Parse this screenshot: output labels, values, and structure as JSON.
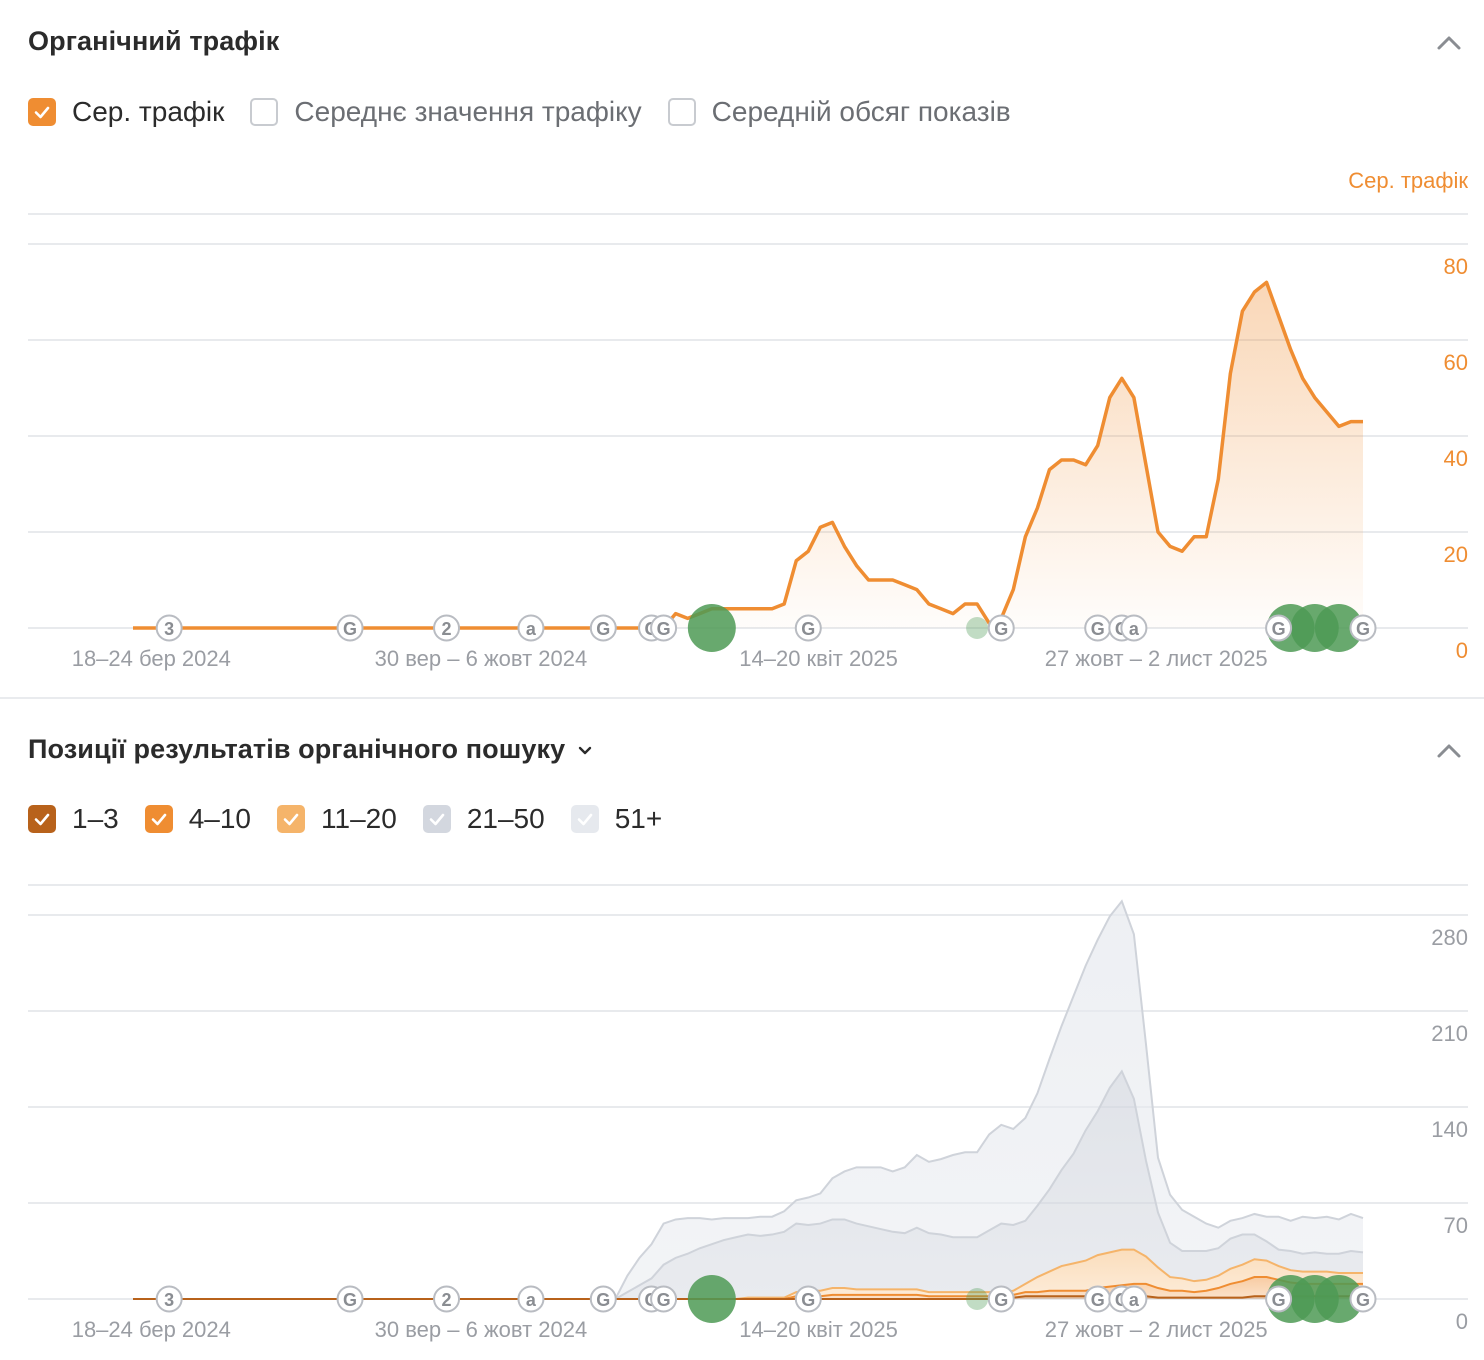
{
  "traffic": {
    "title": "Органічний трафік",
    "legend": [
      {
        "label": "Сер. трафік",
        "checked": true,
        "color": "#ef8d32"
      },
      {
        "label": "Середнє значення трафіку",
        "checked": false,
        "color": "#c8cbd0"
      },
      {
        "label": "Середній обсяг показів",
        "checked": false,
        "color": "#c8cbd0"
      }
    ],
    "chart_data": {
      "type": "area",
      "axis_title": "Сер. трафік",
      "y_ticks": [
        "0",
        "20",
        "40",
        "60",
        "80"
      ],
      "ylim": [
        0,
        80
      ],
      "x_tick_labels": [
        "18–24 бер 2024",
        "30 вер – 6 жовт 2024",
        "14–20 квіт 2025",
        "27 жовт – 2 лист 2025"
      ],
      "x_tick_index": [
        5,
        33,
        61,
        89
      ],
      "series": [
        {
          "color": "#ef8d32",
          "values": [
            0,
            0,
            0,
            0,
            0,
            0,
            0,
            0,
            0,
            0,
            0,
            0,
            0,
            0,
            0,
            0,
            0,
            0,
            0,
            0,
            0,
            0,
            0,
            0,
            0,
            0,
            0,
            0,
            0,
            0,
            0,
            0,
            0,
            0,
            0,
            0,
            0,
            0,
            0,
            0,
            0,
            0,
            0,
            0,
            0,
            3,
            2,
            3,
            4,
            4,
            4,
            4,
            4,
            4,
            5,
            14,
            16,
            21,
            22,
            17,
            13,
            10,
            10,
            10,
            9,
            8,
            5,
            4,
            3,
            5,
            5,
            1,
            2,
            8,
            19,
            25,
            33,
            35,
            35,
            34,
            38,
            48,
            52,
            48,
            34,
            20,
            17,
            16,
            19,
            19,
            31,
            53,
            66,
            70,
            72,
            65,
            58,
            52,
            48,
            45,
            42,
            43,
            43
          ]
        }
      ],
      "events": [
        {
          "i": 3,
          "label": "3"
        },
        {
          "i": 18,
          "label": "G"
        },
        {
          "i": 26,
          "label": "2"
        },
        {
          "i": 33,
          "label": "a"
        },
        {
          "i": 39,
          "label": "G"
        },
        {
          "i": 43,
          "label": "G"
        },
        {
          "i": 44,
          "label": "G"
        },
        {
          "i": 56,
          "label": "G"
        },
        {
          "i": 72,
          "label": "G"
        },
        {
          "i": 80,
          "label": "G"
        },
        {
          "i": 82,
          "label": "G"
        },
        {
          "i": 83,
          "label": "a"
        },
        {
          "i": 95,
          "label": "G"
        },
        {
          "i": 102,
          "label": "G"
        }
      ],
      "annotations": [
        {
          "i": 48,
          "size": "large"
        },
        {
          "i": 70,
          "size": "small"
        },
        {
          "i": 96,
          "size": "large"
        },
        {
          "i": 98,
          "size": "large"
        },
        {
          "i": 100,
          "size": "large"
        }
      ]
    }
  },
  "positions": {
    "title": "Позиції результатів органічного пошуку",
    "legend": [
      {
        "label": "1–3",
        "checked": true,
        "color": "#b8621b"
      },
      {
        "label": "4–10",
        "checked": true,
        "color": "#ef8d32"
      },
      {
        "label": "11–20",
        "checked": true,
        "color": "#f5b46a"
      },
      {
        "label": "21–50",
        "checked": true,
        "color": "#d3d7df"
      },
      {
        "label": "51+",
        "checked": true,
        "color": "#e6e9ee"
      }
    ],
    "chart_data": {
      "type": "area",
      "stacked": true,
      "y_ticks": [
        "0",
        "70",
        "140",
        "210",
        "280"
      ],
      "ylim": [
        0,
        280
      ],
      "x_tick_labels": [
        "18–24 бер 2024",
        "30 вер – 6 жовт 2024",
        "14–20 квіт 2025",
        "27 жовт – 2 лист 2025"
      ],
      "x_tick_index": [
        5,
        33,
        61,
        89
      ],
      "series": [
        {
          "name": "1–3",
          "color": "#b8621b",
          "values": [
            0,
            0,
            0,
            0,
            0,
            0,
            0,
            0,
            0,
            0,
            0,
            0,
            0,
            0,
            0,
            0,
            0,
            0,
            0,
            0,
            0,
            0,
            0,
            0,
            0,
            0,
            0,
            0,
            0,
            0,
            0,
            0,
            0,
            0,
            0,
            0,
            0,
            0,
            0,
            0,
            0,
            0,
            0,
            0,
            0,
            0,
            0,
            0,
            0,
            0,
            0,
            0,
            0,
            0,
            0,
            0,
            0,
            0,
            0,
            0,
            0,
            0,
            0,
            0,
            0,
            0,
            0,
            0,
            0,
            0,
            0,
            0,
            0,
            1,
            2,
            2,
            2,
            2,
            2,
            2,
            2,
            2,
            2,
            2,
            2,
            1,
            1,
            1,
            1,
            1,
            1,
            1,
            1,
            2,
            2,
            2,
            2,
            2,
            2,
            2,
            2,
            2,
            2
          ]
        },
        {
          "name": "4–10",
          "color": "#ef8d32",
          "values": [
            0,
            0,
            0,
            0,
            0,
            0,
            0,
            0,
            0,
            0,
            0,
            0,
            0,
            0,
            0,
            0,
            0,
            0,
            0,
            0,
            0,
            0,
            0,
            0,
            0,
            0,
            0,
            0,
            0,
            0,
            0,
            0,
            0,
            0,
            0,
            0,
            0,
            0,
            0,
            0,
            0,
            0,
            0,
            0,
            0,
            0,
            0,
            0,
            0,
            0,
            0,
            0,
            0,
            0,
            0,
            2,
            2,
            2,
            3,
            3,
            3,
            3,
            3,
            3,
            3,
            3,
            2,
            2,
            2,
            2,
            2,
            2,
            2,
            2,
            3,
            3,
            4,
            4,
            4,
            4,
            6,
            7,
            8,
            9,
            9,
            7,
            5,
            5,
            4,
            5,
            7,
            10,
            12,
            14,
            14,
            12,
            10,
            9,
            9,
            9,
            9,
            9,
            9
          ]
        },
        {
          "name": "11–20",
          "color": "#f5b46a",
          "values": [
            0,
            0,
            0,
            0,
            0,
            0,
            0,
            0,
            0,
            0,
            0,
            0,
            0,
            0,
            0,
            0,
            0,
            0,
            0,
            0,
            0,
            0,
            0,
            0,
            0,
            0,
            0,
            0,
            0,
            0,
            0,
            0,
            0,
            0,
            0,
            0,
            0,
            0,
            0,
            0,
            0,
            0,
            0,
            0,
            0,
            0,
            0,
            0,
            0,
            0,
            0,
            1,
            1,
            1,
            1,
            3,
            4,
            4,
            5,
            5,
            4,
            4,
            4,
            4,
            4,
            4,
            3,
            3,
            3,
            3,
            3,
            3,
            3,
            3,
            6,
            11,
            14,
            18,
            20,
            22,
            24,
            25,
            26,
            25,
            20,
            15,
            10,
            9,
            8,
            8,
            9,
            11,
            12,
            13,
            12,
            10,
            9,
            9,
            9,
            9,
            8,
            8,
            8
          ]
        },
        {
          "name": "21–50",
          "color": "#d3d7df",
          "values": [
            0,
            0,
            0,
            0,
            0,
            0,
            0,
            0,
            0,
            0,
            0,
            0,
            0,
            0,
            0,
            0,
            0,
            0,
            0,
            0,
            0,
            0,
            0,
            0,
            0,
            0,
            0,
            0,
            0,
            0,
            0,
            0,
            0,
            0,
            0,
            0,
            0,
            0,
            0,
            0,
            0,
            5,
            10,
            15,
            25,
            30,
            33,
            37,
            40,
            43,
            45,
            46,
            45,
            46,
            48,
            50,
            48,
            49,
            50,
            50,
            48,
            46,
            44,
            42,
            41,
            45,
            43,
            42,
            40,
            40,
            40,
            45,
            50,
            48,
            46,
            52,
            60,
            70,
            80,
            95,
            105,
            120,
            130,
            110,
            70,
            40,
            25,
            20,
            22,
            21,
            20,
            22,
            22,
            18,
            14,
            12,
            14,
            13,
            14,
            13,
            14,
            16,
            15
          ]
        },
        {
          "name": "51+",
          "color": "#e6e9ee",
          "values": [
            0,
            0,
            0,
            0,
            0,
            0,
            0,
            0,
            0,
            0,
            0,
            0,
            0,
            0,
            0,
            0,
            0,
            0,
            0,
            0,
            0,
            0,
            0,
            0,
            0,
            0,
            0,
            0,
            0,
            0,
            0,
            0,
            0,
            0,
            0,
            0,
            0,
            0,
            0,
            0,
            0,
            12,
            20,
            25,
            30,
            28,
            26,
            22,
            18,
            16,
            14,
            12,
            14,
            13,
            15,
            17,
            20,
            22,
            30,
            35,
            41,
            43,
            45,
            44,
            48,
            53,
            52,
            55,
            60,
            62,
            62,
            70,
            72,
            70,
            75,
            82,
            95,
            105,
            115,
            120,
            125,
            125,
            124,
            120,
            85,
            40,
            35,
            30,
            25,
            20,
            15,
            13,
            12,
            15,
            18,
            24,
            22,
            27,
            25,
            27,
            25,
            27,
            25
          ]
        }
      ],
      "events": [
        {
          "i": 3,
          "label": "3"
        },
        {
          "i": 18,
          "label": "G"
        },
        {
          "i": 26,
          "label": "2"
        },
        {
          "i": 33,
          "label": "a"
        },
        {
          "i": 39,
          "label": "G"
        },
        {
          "i": 43,
          "label": "G"
        },
        {
          "i": 44,
          "label": "G"
        },
        {
          "i": 56,
          "label": "G"
        },
        {
          "i": 72,
          "label": "G"
        },
        {
          "i": 80,
          "label": "G"
        },
        {
          "i": 82,
          "label": "G"
        },
        {
          "i": 83,
          "label": "a"
        },
        {
          "i": 95,
          "label": "G"
        },
        {
          "i": 102,
          "label": "G"
        }
      ],
      "annotations": [
        {
          "i": 48,
          "size": "large"
        },
        {
          "i": 70,
          "size": "small"
        },
        {
          "i": 96,
          "size": "large"
        },
        {
          "i": 98,
          "size": "large"
        },
        {
          "i": 100,
          "size": "large"
        }
      ]
    }
  },
  "colors": {
    "accent": "#ef8d32",
    "annotation": "#4e9a55",
    "grid": "#e8eaed",
    "tick": "#9a9da3"
  }
}
